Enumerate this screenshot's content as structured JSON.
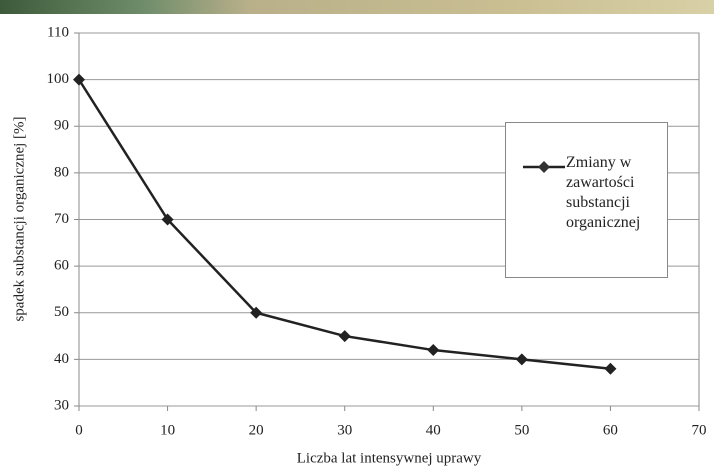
{
  "chart_data": {
    "type": "line",
    "x_label": "Liczba lat intensywnej uprawy",
    "y_label": "spadek substancji organicznej [%]",
    "x": [
      0,
      10,
      20,
      30,
      40,
      50,
      60
    ],
    "series": [
      {
        "name": "Zmiany w zawartości substancji organicznej",
        "color": "#222222",
        "values": [
          100,
          70,
          50,
          45,
          42,
          40,
          38
        ]
      }
    ],
    "xlim": [
      0,
      70
    ],
    "xticks": [
      0,
      10,
      20,
      30,
      40,
      50,
      60,
      70
    ],
    "ylim": [
      30,
      110
    ],
    "yticks": [
      30,
      40,
      50,
      60,
      70,
      80,
      90,
      100,
      110
    ],
    "grid": true,
    "legend": "right"
  }
}
